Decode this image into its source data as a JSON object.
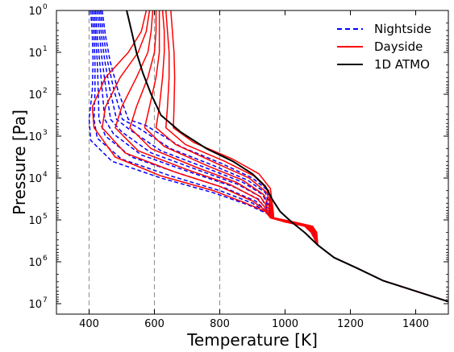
{
  "chart_data": {
    "type": "line",
    "title": "",
    "xlabel": "Temperature [K]",
    "ylabel": "Pressure [Pa]",
    "xlim": [
      300,
      1500
    ],
    "ylim_log10": [
      0,
      7.25
    ],
    "y_scale": "log",
    "y_inverted": true,
    "grid": false,
    "legend_placement": "top-right",
    "x_ticks": [
      "400",
      "600",
      "800",
      "1000",
      "1200",
      "1400"
    ],
    "y_ticks": [
      {
        "base": "10",
        "exp": "0"
      },
      {
        "base": "10",
        "exp": "1"
      },
      {
        "base": "10",
        "exp": "2"
      },
      {
        "base": "10",
        "exp": "3"
      },
      {
        "base": "10",
        "exp": "4"
      },
      {
        "base": "10",
        "exp": "5"
      },
      {
        "base": "10",
        "exp": "6"
      },
      {
        "base": "10",
        "exp": "7"
      }
    ],
    "vertical_reference_lines": [
      400,
      600,
      800
    ],
    "colors": {
      "nightside": "#0000ff",
      "dayside": "#ff0000",
      "atmo": "#000000",
      "reference": "#999999"
    },
    "legend": [
      {
        "label": "Nightside",
        "series": "nightside",
        "style": "dashed"
      },
      {
        "label": "Dayside",
        "series": "dayside",
        "style": "solid"
      },
      {
        "label": "1D ATMO",
        "series": "atmo",
        "style": "solid"
      }
    ],
    "series": [
      {
        "group": "atmo",
        "x": [
          515,
          530,
          545,
          565,
          590,
          620,
          680,
          760,
          840,
          900,
          940,
          960,
          985,
          1020,
          1060,
          1100,
          1150,
          1220,
          1300,
          1400,
          1500
        ],
        "log10_p": [
          0,
          0.5,
          1,
          1.5,
          2,
          2.5,
          2.9,
          3.3,
          3.6,
          3.9,
          4.2,
          4.5,
          4.8,
          5.05,
          5.3,
          5.6,
          5.9,
          6.15,
          6.45,
          6.7,
          6.95
        ]
      },
      {
        "group": "dayside",
        "x": [
          575,
          560,
          520,
          450,
          410,
          415,
          480,
          620,
          780,
          880,
          940,
          955,
          1000,
          1060,
          1080,
          1100,
          1150,
          1220,
          1300,
          1400,
          1500
        ],
        "log10_p": [
          0,
          0.5,
          1,
          1.6,
          2.3,
          2.8,
          3.5,
          3.95,
          4.3,
          4.6,
          4.8,
          4.95,
          5.05,
          5.15,
          5.3,
          5.6,
          5.9,
          6.15,
          6.45,
          6.7,
          6.95
        ]
      },
      {
        "group": "dayside",
        "x": [
          585,
          575,
          550,
          495,
          450,
          440,
          510,
          660,
          800,
          900,
          945,
          955,
          1005,
          1065,
          1085,
          1100,
          1150,
          1220,
          1300,
          1400,
          1500
        ],
        "log10_p": [
          0,
          0.5,
          1,
          1.6,
          2.3,
          2.8,
          3.4,
          3.85,
          4.2,
          4.55,
          4.8,
          4.95,
          5.05,
          5.15,
          5.3,
          5.6,
          5.9,
          6.15,
          6.45,
          6.7,
          6.95
        ]
      },
      {
        "group": "dayside",
        "x": [
          595,
          590,
          580,
          545,
          500,
          480,
          550,
          700,
          830,
          915,
          950,
          958,
          1010,
          1070,
          1090,
          1100,
          1150,
          1220,
          1300,
          1400,
          1500
        ],
        "log10_p": [
          0,
          0.5,
          1,
          1.6,
          2.3,
          2.8,
          3.35,
          3.8,
          4.15,
          4.5,
          4.8,
          4.95,
          5.05,
          5.15,
          5.3,
          5.6,
          5.9,
          6.15,
          6.45,
          6.7,
          6.95
        ]
      },
      {
        "group": "dayside",
        "x": [
          605,
          605,
          600,
          580,
          545,
          525,
          590,
          730,
          850,
          925,
          955,
          960,
          1015,
          1075,
          1092,
          1100,
          1150,
          1220,
          1300,
          1400,
          1500
        ],
        "log10_p": [
          0,
          0.5,
          1,
          1.6,
          2.3,
          2.8,
          3.3,
          3.75,
          4.1,
          4.45,
          4.8,
          4.95,
          5.05,
          5.15,
          5.3,
          5.6,
          5.9,
          6.15,
          6.45,
          6.7,
          6.95
        ]
      },
      {
        "group": "dayside",
        "x": [
          615,
          615,
          615,
          605,
          585,
          570,
          630,
          760,
          870,
          935,
          958,
          962,
          1020,
          1078,
          1094,
          1100,
          1150,
          1220,
          1300,
          1400,
          1500
        ],
        "log10_p": [
          0,
          0.5,
          1,
          1.6,
          2.3,
          2.8,
          3.25,
          3.7,
          4.05,
          4.4,
          4.8,
          4.95,
          5.05,
          5.15,
          5.3,
          5.6,
          5.9,
          6.15,
          6.45,
          6.7,
          6.95
        ]
      },
      {
        "group": "dayside",
        "x": [
          625,
          630,
          630,
          625,
          615,
          605,
          665,
          790,
          890,
          945,
          960,
          963,
          1022,
          1080,
          1095,
          1100,
          1150,
          1220,
          1300,
          1400,
          1500
        ],
        "log10_p": [
          0,
          0.5,
          1,
          1.6,
          2.3,
          2.8,
          3.2,
          3.65,
          4.0,
          4.35,
          4.8,
          4.95,
          5.05,
          5.15,
          5.3,
          5.6,
          5.9,
          6.15,
          6.45,
          6.7,
          6.95
        ]
      },
      {
        "group": "dayside",
        "x": [
          635,
          640,
          645,
          645,
          640,
          635,
          695,
          815,
          905,
          950,
          962,
          964,
          1025,
          1082,
          1096,
          1100,
          1150,
          1220,
          1300,
          1400,
          1500
        ],
        "log10_p": [
          0,
          0.5,
          1,
          1.6,
          2.3,
          2.8,
          3.2,
          3.6,
          3.95,
          4.3,
          4.8,
          4.95,
          5.05,
          5.15,
          5.3,
          5.6,
          5.9,
          6.15,
          6.45,
          6.7,
          6.95
        ]
      },
      {
        "group": "dayside",
        "x": [
          650,
          655,
          660,
          662,
          660,
          658,
          720,
          840,
          920,
          955,
          964,
          965,
          1028,
          1084,
          1097,
          1100,
          1150,
          1220,
          1300,
          1400,
          1500
        ],
        "log10_p": [
          0,
          0.5,
          1,
          1.6,
          2.3,
          2.8,
          3.15,
          3.55,
          3.9,
          4.25,
          4.8,
          4.95,
          5.05,
          5.15,
          5.3,
          5.6,
          5.9,
          6.15,
          6.45,
          6.7,
          6.95
        ]
      },
      {
        "group": "nightside",
        "x": [
          405,
          410,
          412,
          410,
          400,
          405,
          470,
          620,
          780,
          890,
          945,
          955,
          1000,
          1060,
          1080,
          1100,
          1150,
          1220,
          1300,
          1400,
          1500
        ],
        "log10_p": [
          0,
          0.6,
          1.2,
          1.9,
          2.6,
          3.1,
          3.6,
          4.0,
          4.35,
          4.65,
          4.85,
          4.95,
          5.05,
          5.15,
          5.3,
          5.6,
          5.9,
          6.15,
          6.45,
          6.7,
          6.95
        ]
      },
      {
        "group": "nightside",
        "x": [
          410,
          415,
          418,
          418,
          415,
          425,
          500,
          650,
          800,
          900,
          948,
          956,
          1003,
          1062,
          1082,
          1100,
          1150,
          1220,
          1300,
          1400,
          1500
        ],
        "log10_p": [
          0,
          0.6,
          1.2,
          1.9,
          2.6,
          3.05,
          3.55,
          3.95,
          4.3,
          4.6,
          4.85,
          4.95,
          5.05,
          5.15,
          5.3,
          5.6,
          5.9,
          6.15,
          6.45,
          6.7,
          6.95
        ]
      },
      {
        "group": "nightside",
        "x": [
          415,
          420,
          425,
          428,
          430,
          450,
          530,
          680,
          820,
          910,
          950,
          957,
          1006,
          1065,
          1085,
          1100,
          1150,
          1220,
          1300,
          1400,
          1500
        ],
        "log10_p": [
          0,
          0.6,
          1.2,
          1.9,
          2.6,
          3.0,
          3.5,
          3.9,
          4.25,
          4.55,
          4.85,
          4.95,
          5.05,
          5.15,
          5.3,
          5.6,
          5.9,
          6.15,
          6.45,
          6.7,
          6.95
        ]
      },
      {
        "group": "nightside",
        "x": [
          420,
          425,
          432,
          440,
          448,
          475,
          560,
          705,
          840,
          918,
          952,
          958,
          1009,
          1068,
          1087,
          1100,
          1150,
          1220,
          1300,
          1400,
          1500
        ],
        "log10_p": [
          0,
          0.6,
          1.2,
          1.9,
          2.6,
          2.95,
          3.45,
          3.85,
          4.2,
          4.5,
          4.85,
          4.95,
          5.05,
          5.15,
          5.3,
          5.6,
          5.9,
          6.15,
          6.45,
          6.7,
          6.95
        ]
      },
      {
        "group": "nightside",
        "x": [
          425,
          432,
          440,
          452,
          466,
          500,
          590,
          730,
          855,
          925,
          955,
          959,
          1012,
          1071,
          1089,
          1100,
          1150,
          1220,
          1300,
          1400,
          1500
        ],
        "log10_p": [
          0,
          0.6,
          1.2,
          1.9,
          2.6,
          2.9,
          3.4,
          3.8,
          4.15,
          4.45,
          4.85,
          4.95,
          5.05,
          5.15,
          5.3,
          5.6,
          5.9,
          6.15,
          6.45,
          6.7,
          6.95
        ]
      },
      {
        "group": "nightside",
        "x": [
          430,
          438,
          448,
          464,
          484,
          525,
          620,
          755,
          870,
          932,
          957,
          960,
          1015,
          1074,
          1091,
          1100,
          1150,
          1220,
          1300,
          1400,
          1500
        ],
        "log10_p": [
          0,
          0.6,
          1.2,
          1.9,
          2.6,
          2.85,
          3.35,
          3.75,
          4.1,
          4.4,
          4.85,
          4.95,
          5.05,
          5.15,
          5.3,
          5.6,
          5.9,
          6.15,
          6.45,
          6.7,
          6.95
        ]
      },
      {
        "group": "nightside",
        "x": [
          435,
          444,
          456,
          476,
          502,
          550,
          650,
          780,
          885,
          940,
          960,
          961,
          1018,
          1077,
          1093,
          1100,
          1150,
          1220,
          1300,
          1400,
          1500
        ],
        "log10_p": [
          0,
          0.6,
          1.2,
          1.9,
          2.6,
          2.8,
          3.3,
          3.7,
          4.05,
          4.35,
          4.85,
          4.95,
          5.05,
          5.15,
          5.3,
          5.6,
          5.9,
          6.15,
          6.45,
          6.7,
          6.95
        ]
      },
      {
        "group": "nightside",
        "x": [
          440,
          450,
          464,
          488,
          520,
          575,
          680,
          805,
          900,
          948,
          962,
          962,
          1021,
          1080,
          1095,
          1100,
          1150,
          1220,
          1300,
          1400,
          1500
        ],
        "log10_p": [
          0,
          0.6,
          1.2,
          1.9,
          2.6,
          2.75,
          3.25,
          3.65,
          4.0,
          4.3,
          4.85,
          4.95,
          5.05,
          5.15,
          5.3,
          5.6,
          5.9,
          6.15,
          6.45,
          6.7,
          6.95
        ]
      }
    ]
  }
}
